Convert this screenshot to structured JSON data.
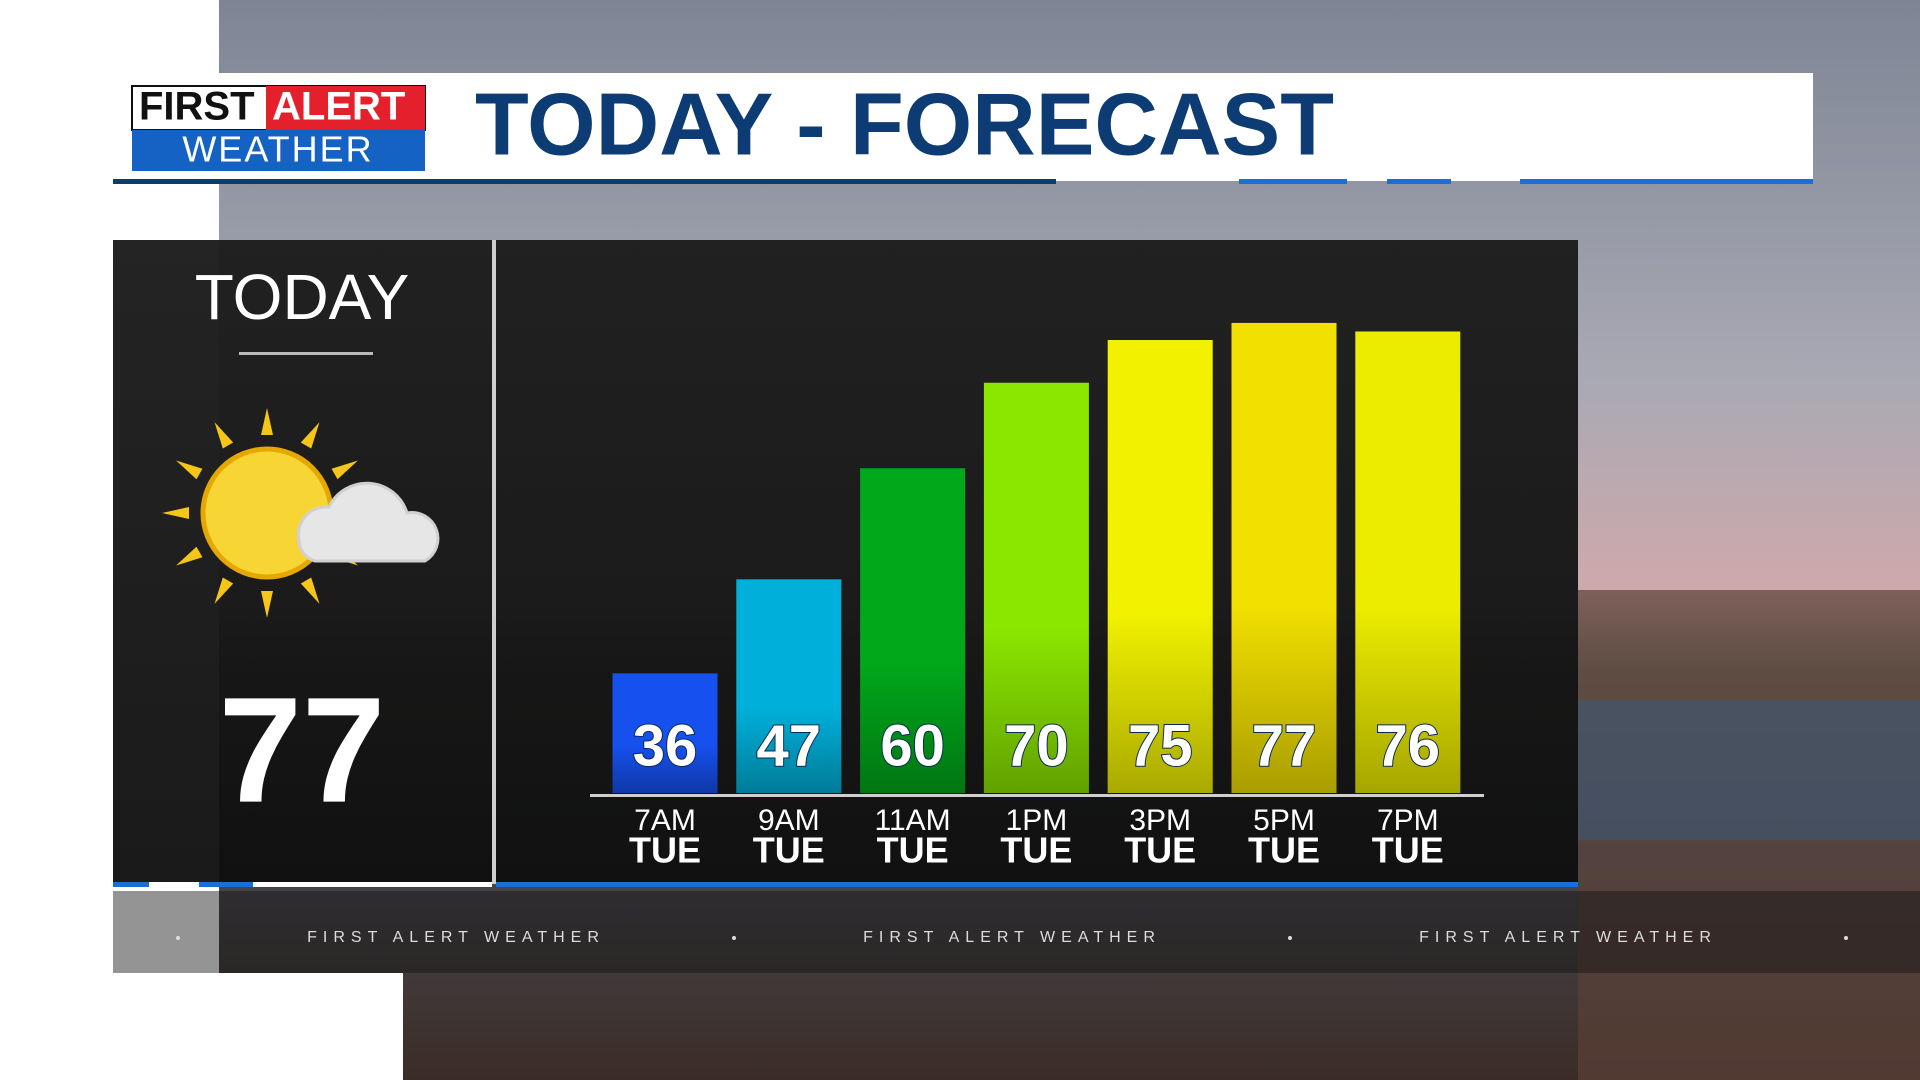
{
  "logo": {
    "line1": "FIRST",
    "line1_accent": "ALERT",
    "line2": "WEATHER"
  },
  "ticker": [
    "FIRST ALERT WEATHER",
    "FIRST ALERT WEATHER",
    "FIRST ALERT WEATHER"
  ],
  "summary": {
    "label": "TODAY",
    "high": 77
  },
  "chart_data": {
    "type": "bar",
    "title": "TODAY - FORECAST",
    "categories": [
      "7AM",
      "9AM",
      "11AM",
      "1PM",
      "3PM",
      "5PM",
      "7PM"
    ],
    "sublabels": [
      "TUE",
      "TUE",
      "TUE",
      "TUE",
      "TUE",
      "TUE",
      "TUE"
    ],
    "values": [
      36,
      47,
      60,
      70,
      75,
      77,
      76
    ],
    "colors": [
      "#1650ee",
      "#00b0da",
      "#00a81a",
      "#8be600",
      "#f2f200",
      "#f2e000",
      "#ecec00"
    ],
    "ylim": [
      22,
      86
    ]
  }
}
